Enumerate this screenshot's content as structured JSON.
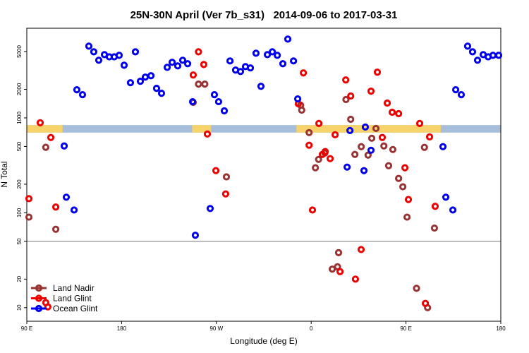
{
  "chart_data": {
    "type": "scatter",
    "title": "25N-30N April (Ver 7b_s31)   2014-09-06 to 2017-03-31",
    "xlabel": "Longitude (deg E)",
    "ylabel": "N Total",
    "log_y": true,
    "xlim": [
      90,
      540
    ],
    "ylim": [
      7.2,
      8800
    ],
    "xticks": [
      {
        "value": 90,
        "label": "90 E"
      },
      180,
      {
        "value": 270,
        "label": "90 W"
      },
      {
        "value": 360,
        "label": "0"
      },
      {
        "value": 450,
        "label": "90 E"
      },
      {
        "value": 540,
        "label": "180"
      }
    ],
    "yticks": [
      10,
      20,
      50,
      100,
      200,
      500,
      1000,
      2000,
      5000
    ],
    "hline": {
      "value": 50,
      "color": "#777777"
    },
    "band": {
      "ylim": [
        700,
        840
      ],
      "color": "#a6bddb",
      "highlight_color": "#f6d36b",
      "highlight_ranges": [
        [
          90,
          124
        ],
        [
          247,
          265
        ],
        [
          346,
          483
        ]
      ]
    },
    "legend_position": "lower left",
    "series": [
      {
        "name": "Land Nadir",
        "color": "#993333",
        "x": [
          92,
          108,
          117.5,
          248,
          253,
          259,
          279.5,
          358,
          351,
          350,
          364,
          367,
          373,
          380,
          385,
          386,
          393,
          397.5,
          401.5,
          407.5,
          414,
          417.5,
          421.5,
          429,
          433.5,
          437.5,
          443,
          447,
          451,
          460,
          467.5,
          470.5,
          477
        ],
        "values": [
          90,
          490,
          67,
          1455,
          2270,
          2270,
          239,
          700,
          1206,
          1360,
          298,
          365,
          426,
          25.5,
          27,
          38,
          1560,
          966,
          412,
          497,
          405,
          610,
          774,
          506,
          313,
          464,
          230,
          188,
          90,
          16,
          489,
          10,
          69
        ]
      },
      {
        "name": "Land Glint",
        "color": "#ee0000",
        "x": [
          92,
          102.7,
          112.8,
          117.5,
          108,
          110,
          248,
          253,
          258,
          261.4,
          269.5,
          278.8,
          352.6,
          347.8,
          358,
          361.2,
          367.3,
          370.6,
          373.3,
          378,
          382.7,
          387.4,
          392.8,
          397.5,
          402,
          407.4,
          416.8,
          422.8,
          427.5,
          432.2,
          436.9,
          443,
          449,
          452.3,
          463,
          468.4,
          472.4,
          477.7
        ],
        "values": [
          141,
          888,
          621,
          115,
          11.3,
          10.2,
          2830,
          4970,
          3650,
          676,
          278,
          158,
          2980,
          1407,
          515,
          107,
          873,
          412,
          441,
          372,
          664,
          24,
          2510,
          1700,
          20,
          41,
          1912,
          3030,
          621,
          1432,
          1146,
          1108,
          298,
          138,
          873,
          11.1,
          631,
          117
        ]
      },
      {
        "name": "Ocean Glint",
        "color": "#0000ee",
        "x": [
          125.5,
          127.5,
          134.9,
          137.5,
          142.9,
          148.9,
          153.6,
          158.3,
          163.7,
          168.3,
          173,
          177.7,
          182.4,
          188.4,
          193.1,
          197.8,
          202.5,
          207.9,
          213.2,
          217.9,
          223.3,
          228,
          233.3,
          238,
          242.7,
          247.4,
          250,
          264.1,
          268.1,
          272.1,
          277.5,
          282.9,
          288.2,
          292.9,
          297.6,
          302.3,
          307.6,
          312.3,
          318.4,
          323.1,
          327.8,
          333.1,
          337.8,
          343.2,
          347.2,
          394.1,
          396.8,
          410.1,
          411.4,
          416.8,
          485.1,
          487.8,
          494.5,
          497.2,
          502.5,
          508.5,
          513.2,
          517.9,
          523.3,
          528,
          532.6,
          538
        ],
        "values": [
          506,
          146,
          107,
          1978,
          1755,
          5700,
          4970,
          4050,
          4640,
          4400,
          4400,
          4560,
          3590,
          2346,
          4970,
          2430,
          2690,
          2780,
          2048,
          1817,
          3410,
          3850,
          3530,
          4050,
          3720,
          1480,
          58,
          111,
          1755,
          1480,
          1186,
          3980,
          3190,
          3080,
          3470,
          3360,
          4800,
          2150,
          4640,
          4970,
          4560,
          3720,
          6760,
          3980,
          1585,
          303,
          736,
          278,
          801,
          456,
          497,
          146,
          107,
          1978,
          1755,
          5700,
          4970,
          4050,
          4640,
          4400,
          4560,
          4560
        ]
      }
    ]
  }
}
